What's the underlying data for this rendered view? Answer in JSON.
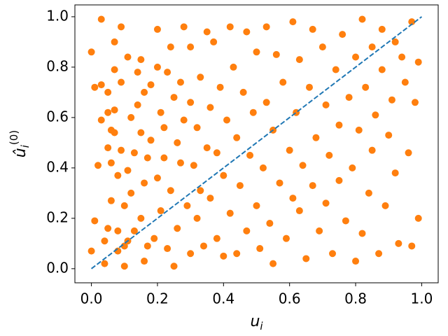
{
  "chart_data": {
    "type": "scatter",
    "xlabel": {
      "base": "u",
      "sub": "i"
    },
    "ylabel": {
      "base": "û",
      "sub": "i",
      "sup": "(0)"
    },
    "color": "#ff7f0e",
    "xlim": [
      -0.05,
      1.05
    ],
    "ylim": [
      -0.056,
      1.047
    ],
    "xticks": [
      {
        "value": 0,
        "label": "0.0"
      },
      {
        "value": 0.2,
        "label": "0.2"
      },
      {
        "value": 0.4,
        "label": "0.4"
      },
      {
        "value": 0.6,
        "label": "0.6"
      },
      {
        "value": 0.8,
        "label": "0.8"
      },
      {
        "value": 1,
        "label": "1.0"
      }
    ],
    "yticks": [
      {
        "value": 0,
        "label": "0.0"
      },
      {
        "value": 0.2,
        "label": "0.2"
      },
      {
        "value": 0.4,
        "label": "0.4"
      },
      {
        "value": 0.6,
        "label": "0.6"
      },
      {
        "value": 0.8,
        "label": "0.8"
      },
      {
        "value": 1,
        "label": "1.0"
      }
    ],
    "reference_line": {
      "x": [
        0,
        1
      ],
      "y": [
        0,
        1
      ],
      "color": "#1f77b4"
    },
    "x": [
      0.0,
      0.0,
      0.01,
      0.01,
      0.02,
      0.03,
      0.03,
      0.03,
      0.04,
      0.04,
      0.05,
      0.05,
      0.05,
      0.05,
      0.06,
      0.06,
      0.06,
      0.07,
      0.07,
      0.07,
      0.07,
      0.08,
      0.08,
      0.08,
      0.09,
      0.09,
      0.09,
      0.1,
      0.1,
      0.1,
      0.11,
      0.11,
      0.11,
      0.12,
      0.12,
      0.13,
      0.13,
      0.14,
      0.14,
      0.15,
      0.15,
      0.15,
      0.16,
      0.16,
      0.16,
      0.17,
      0.17,
      0.18,
      0.18,
      0.19,
      0.2,
      0.2,
      0.2,
      0.21,
      0.21,
      0.22,
      0.22,
      0.23,
      0.23,
      0.24,
      0.24,
      0.25,
      0.25,
      0.26,
      0.26,
      0.27,
      0.27,
      0.28,
      0.28,
      0.29,
      0.3,
      0.3,
      0.3,
      0.31,
      0.32,
      0.32,
      0.33,
      0.33,
      0.34,
      0.35,
      0.35,
      0.36,
      0.36,
      0.37,
      0.38,
      0.38,
      0.39,
      0.4,
      0.4,
      0.41,
      0.42,
      0.42,
      0.43,
      0.44,
      0.44,
      0.45,
      0.46,
      0.47,
      0.47,
      0.48,
      0.49,
      0.5,
      0.5,
      0.51,
      0.52,
      0.53,
      0.53,
      0.54,
      0.55,
      0.55,
      0.56,
      0.57,
      0.58,
      0.59,
      0.6,
      0.61,
      0.61,
      0.62,
      0.63,
      0.63,
      0.64,
      0.65,
      0.66,
      0.67,
      0.67,
      0.68,
      0.69,
      0.7,
      0.71,
      0.71,
      0.72,
      0.73,
      0.74,
      0.75,
      0.75,
      0.76,
      0.77,
      0.78,
      0.79,
      0.8,
      0.8,
      0.81,
      0.82,
      0.82,
      0.83,
      0.84,
      0.85,
      0.85,
      0.86,
      0.87,
      0.88,
      0.88,
      0.89,
      0.9,
      0.91,
      0.92,
      0.92,
      0.93,
      0.94,
      0.95,
      0.96,
      0.97,
      0.97,
      0.98,
      0.99,
      0.99
    ],
    "y": [
      0.86,
      0.07,
      0.72,
      0.19,
      0.41,
      0.73,
      0.99,
      0.59,
      0.11,
      0.02,
      0.7,
      0.62,
      0.48,
      0.16,
      0.55,
      0.42,
      0.27,
      0.79,
      0.63,
      0.54,
      0.9,
      0.37,
      0.15,
      0.07,
      0.96,
      0.74,
      0.47,
      0.25,
      0.09,
      0.01,
      0.84,
      0.39,
      0.11,
      0.6,
      0.3,
      0.46,
      0.15,
      0.78,
      0.65,
      0.83,
      0.54,
      0.2,
      0.7,
      0.34,
      0.03,
      0.44,
      0.09,
      0.73,
      0.51,
      0.12,
      0.95,
      0.8,
      0.36,
      0.62,
      0.23,
      0.56,
      0.44,
      0.78,
      0.08,
      0.88,
      0.31,
      0.68,
      0.01,
      0.5,
      0.16,
      0.74,
      0.42,
      0.96,
      0.59,
      0.25,
      0.88,
      0.66,
      0.06,
      0.41,
      0.56,
      0.2,
      0.76,
      0.31,
      0.09,
      0.94,
      0.48,
      0.64,
      0.28,
      0.9,
      0.12,
      0.46,
      0.72,
      0.05,
      0.37,
      0.59,
      0.96,
      0.22,
      0.8,
      0.52,
      0.06,
      0.33,
      0.7,
      0.94,
      0.15,
      0.45,
      0.62,
      0.86,
      0.25,
      0.08,
      0.4,
      0.96,
      0.66,
      0.18,
      0.55,
      0.02,
      0.85,
      0.34,
      0.74,
      0.12,
      0.47,
      0.98,
      0.28,
      0.62,
      0.83,
      0.23,
      0.41,
      0.04,
      0.72,
      0.95,
      0.33,
      0.52,
      0.15,
      0.88,
      0.65,
      0.26,
      0.45,
      0.06,
      0.79,
      0.57,
      0.35,
      0.93,
      0.19,
      0.68,
      0.4,
      0.84,
      0.03,
      0.55,
      0.99,
      0.14,
      0.72,
      0.3,
      0.88,
      0.47,
      0.61,
      0.06,
      0.95,
      0.79,
      0.25,
      0.53,
      0.67,
      0.9,
      0.38,
      0.1,
      0.84,
      0.74,
      0.46,
      0.98,
      0.09,
      0.66,
      0.82,
      0.2
    ]
  }
}
